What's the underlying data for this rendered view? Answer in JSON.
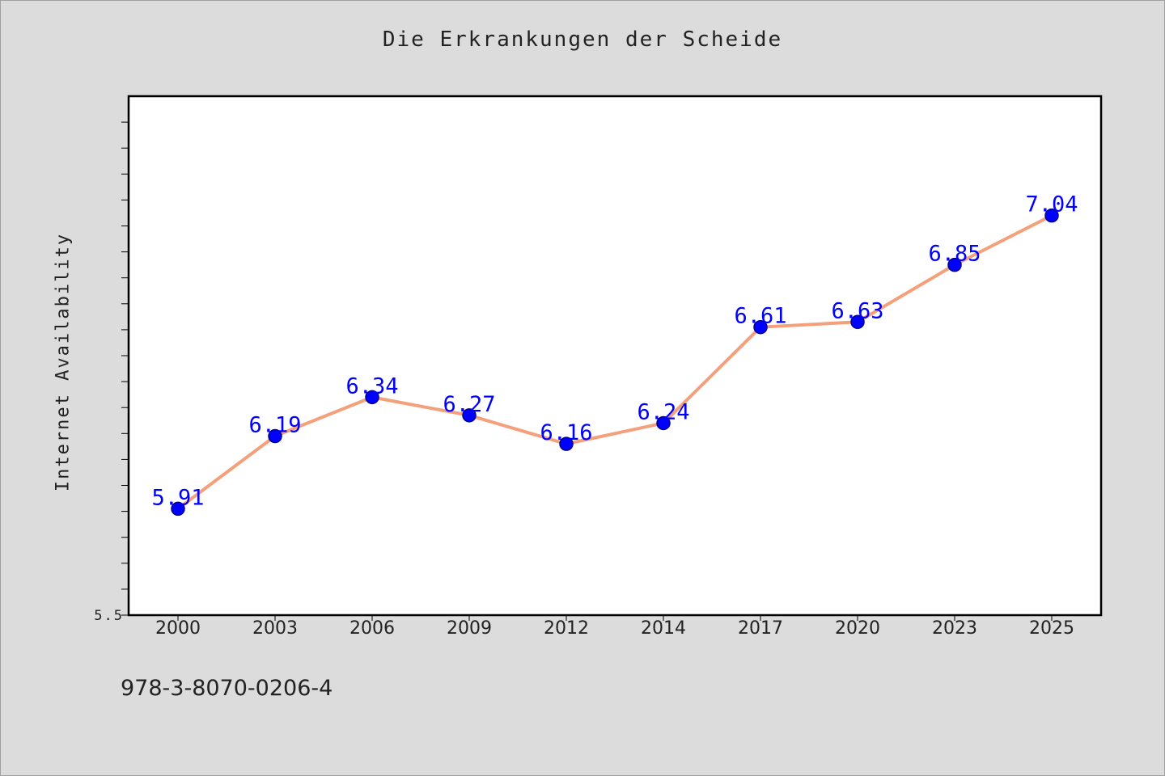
{
  "chart_data": {
    "type": "line",
    "title": "Die Erkrankungen der Scheide",
    "xlabel": "",
    "ylabel": "Internet Availability",
    "categories": [
      "2000",
      "2003",
      "2006",
      "2009",
      "2012",
      "2014",
      "2017",
      "2020",
      "2023",
      "2025"
    ],
    "values": [
      5.91,
      6.19,
      6.34,
      6.27,
      6.16,
      6.24,
      6.61,
      6.63,
      6.85,
      7.04
    ],
    "ylim": [
      5.5,
      7.5
    ],
    "y_tick_labels": [
      "5.5"
    ],
    "data_labels": [
      "5.91",
      "6.19",
      "6.34",
      "6.27",
      "6.16",
      "6.24",
      "6.61",
      "6.63",
      "6.85",
      "7.04"
    ],
    "grid": false,
    "legend": "none",
    "colors": {
      "line": "#f4a07a",
      "marker": "#0000ff",
      "marker_edge": "#00008b",
      "data_label": "#0000ff",
      "plot_background": "#ffffff",
      "figure_background": "#dcdcdc"
    }
  },
  "footer": {
    "code": "978-3-8070-0206-4"
  }
}
